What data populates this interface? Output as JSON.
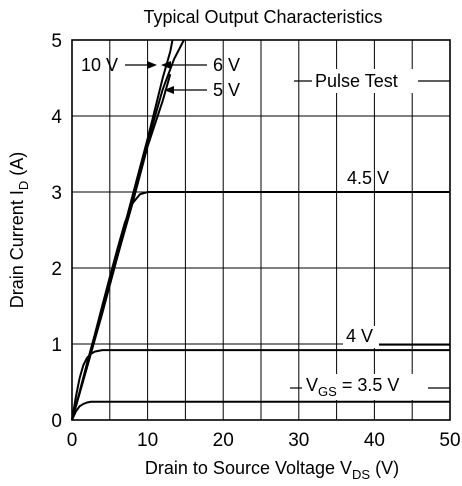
{
  "chart_data": {
    "type": "line",
    "title": "Typical Output Characteristics",
    "xlabel": {
      "prefix": "Drain to Source Voltage  V",
      "sub": "DS",
      "suffix": "  (V)"
    },
    "ylabel": {
      "prefix": "Drain Current  I",
      "sub": "D",
      "suffix": "  (A)"
    },
    "xlim": [
      0,
      50
    ],
    "ylim": [
      0,
      5
    ],
    "xticks": [
      0,
      10,
      20,
      30,
      40,
      50
    ],
    "yticks": [
      0,
      1,
      2,
      3,
      4,
      5
    ],
    "x_gridlines": [
      5,
      10,
      15,
      20,
      25,
      30,
      35,
      40,
      45
    ],
    "y_gridlines": [
      1,
      2,
      3,
      4
    ],
    "grid": true,
    "note": "Pulse Test",
    "series": [
      {
        "name": "10 V",
        "x": [
          0,
          2,
          4,
          6,
          8,
          10,
          11,
          12,
          13,
          13.3
        ],
        "y": [
          0,
          0.72,
          1.45,
          2.2,
          2.95,
          3.7,
          4.1,
          4.5,
          4.85,
          5.0
        ]
      },
      {
        "name": "6 V",
        "x": [
          0,
          2,
          4,
          6,
          8,
          10,
          12,
          13.5,
          14.8
        ],
        "y": [
          0,
          0.7,
          1.42,
          2.15,
          2.9,
          3.65,
          4.35,
          4.75,
          5.0
        ]
      },
      {
        "name": "5 V",
        "x": [
          0,
          2,
          4,
          6,
          8,
          10,
          12,
          13
        ],
        "y": [
          0,
          0.7,
          1.4,
          2.15,
          2.85,
          3.6,
          4.2,
          4.55
        ]
      },
      {
        "name": "4.5 V",
        "x": [
          0,
          1,
          2,
          3,
          4,
          5,
          6,
          7,
          8,
          9,
          10,
          11,
          12,
          50
        ],
        "y": [
          0,
          0.37,
          0.75,
          1.12,
          1.5,
          1.88,
          2.25,
          2.6,
          2.85,
          2.97,
          3.0,
          3.0,
          3.0,
          3.0
        ]
      },
      {
        "name": "4 V",
        "x": [
          0,
          0.5,
          1,
          1.5,
          2,
          2.5,
          3,
          4,
          5,
          6,
          50
        ],
        "y": [
          0,
          0.3,
          0.55,
          0.72,
          0.82,
          0.87,
          0.9,
          0.92,
          0.92,
          0.92,
          0.92
        ]
      },
      {
        "name": "3.5 V",
        "x": [
          0,
          0.5,
          1,
          1.5,
          2,
          2.5,
          3,
          4,
          50
        ],
        "y": [
          0,
          0.11,
          0.18,
          0.21,
          0.23,
          0.24,
          0.24,
          0.24,
          0.24
        ]
      }
    ],
    "annotations": [
      {
        "key": "v10",
        "text": "10 V"
      },
      {
        "key": "v6",
        "text": "6 V"
      },
      {
        "key": "v5",
        "text": "5 V"
      },
      {
        "key": "v45",
        "text": "4.5 V"
      },
      {
        "key": "v4",
        "text": "4 V"
      },
      {
        "key": "vgs",
        "prefix": "V",
        "sub": "GS",
        "suffix": " = 3.5 V"
      }
    ]
  }
}
